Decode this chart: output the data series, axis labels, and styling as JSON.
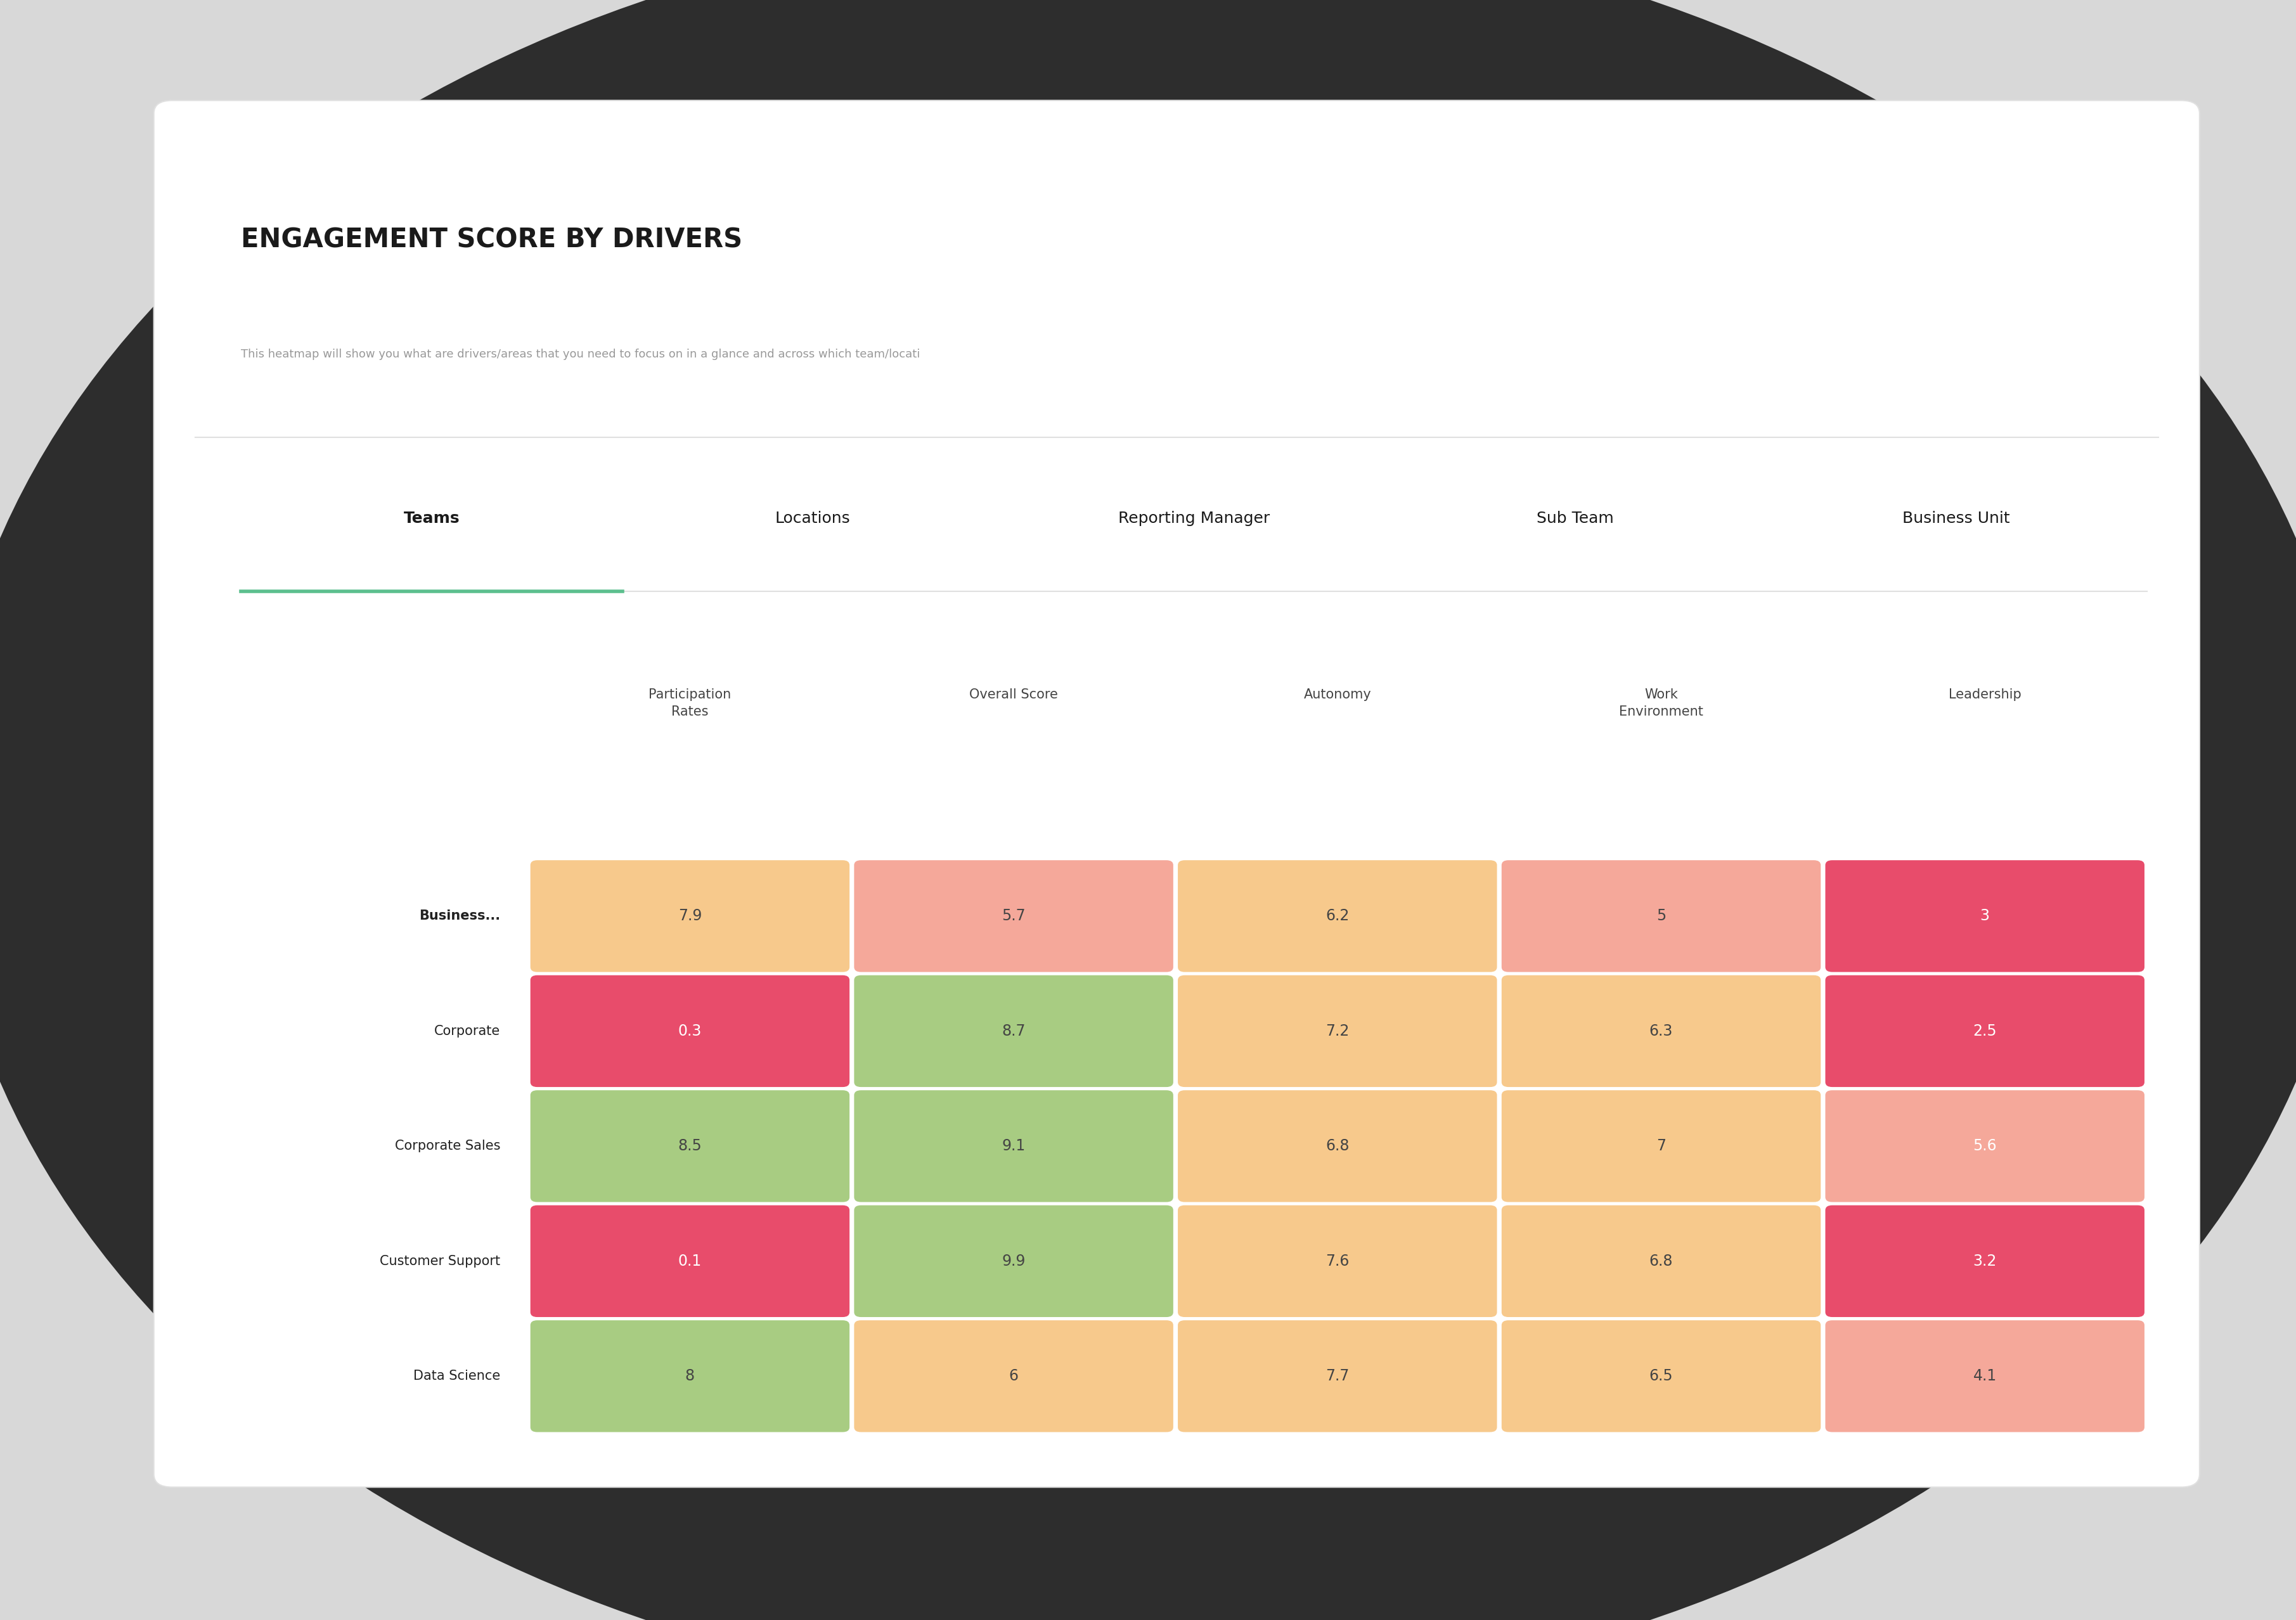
{
  "title": "ENGAGEMENT SCORE BY DRIVERS",
  "subtitle": "This heatmap will show you what are drivers/areas that you need to focus on in a glance and across which team/locati",
  "tabs": [
    "Teams",
    "Locations",
    "Reporting Manager",
    "Sub Team",
    "Business Unit"
  ],
  "active_tab": "Teams",
  "active_tab_color": "#5cbf8e",
  "col_headers": [
    "Participation\nRates",
    "Overall Score",
    "Autonomy",
    "Work\nEnvironment",
    "Leadership"
  ],
  "row_headers": [
    "Business...",
    "Corporate",
    "Corporate Sales",
    "Customer Support",
    "Data Science"
  ],
  "data": [
    [
      7.9,
      5.7,
      6.2,
      5.0,
      3.0
    ],
    [
      0.3,
      8.7,
      7.2,
      6.3,
      2.5
    ],
    [
      8.5,
      9.1,
      6.8,
      7.0,
      5.6
    ],
    [
      0.1,
      9.9,
      7.6,
      6.8,
      3.2
    ],
    [
      8.0,
      6.0,
      7.7,
      6.5,
      4.1
    ]
  ],
  "bg_color": "#d8d8d8",
  "card_color": "#ffffff",
  "title_color": "#1a1a1a",
  "subtitle_color": "#999999",
  "tab_active_weight": "bold",
  "tab_inactive_weight": "normal",
  "row_header_color": "#222222",
  "col_header_color": "#444444",
  "ellipse_color": "#2d2d2d",
  "sep_color": "#e0e0e0",
  "color_breakpoints": [
    0,
    2.0,
    4.0,
    6.0,
    8.0,
    10.1
  ],
  "cell_colors": [
    "#e84c6b",
    "#e84c6b",
    "#f5a89a",
    "#f7c98c",
    "#a8cc82",
    "#72bc60"
  ],
  "cell_text_white_threshold": 4.0,
  "value_display": {
    "7.9": "7.9",
    "5.7": "5.7",
    "6.2": "6.2",
    "5.0": "5",
    "3.0": "3",
    "0.3": "0.3",
    "8.7": "8.7",
    "7.2": "7.2",
    "6.3": "6.3",
    "2.5": "2.5",
    "8.5": "8.5",
    "9.1": "9.1",
    "6.8": "6.8",
    "7.0": "7",
    "5.6": "5.6",
    "0.1": "0.1",
    "9.9": "9.9",
    "7.6": "7.6",
    "8.0": "8",
    "6.0": "6",
    "7.7": "7.7",
    "6.5": "6.5",
    "4.1": "4.1"
  }
}
